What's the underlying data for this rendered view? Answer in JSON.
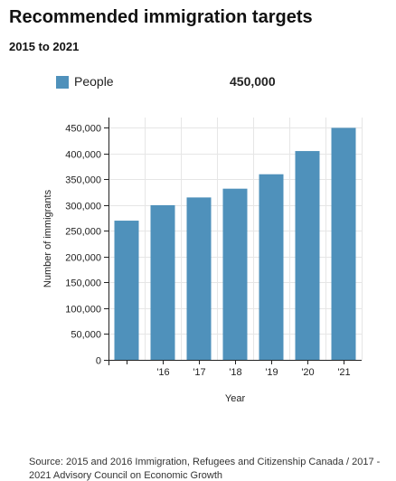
{
  "title": "Recommended immigration targets",
  "subtitle": "2015 to 2021",
  "legend": {
    "label": "People",
    "value": "450,000"
  },
  "source": "Source: 2015 and 2016 Immigration, Refugees and Citizenship Canada / 2017 - 2021 Advisory Council on Economic Growth",
  "colors": {
    "bar": "#4f91bb",
    "grid": "#e6e6e6",
    "axis": "#222222"
  },
  "chart_data": {
    "type": "bar",
    "categories": [
      "",
      "'16",
      "'17",
      "'18",
      "'19",
      "'20",
      "'21"
    ],
    "series": [
      {
        "name": "People",
        "values": [
          270000,
          300000,
          315000,
          332000,
          360000,
          405000,
          450000
        ]
      }
    ],
    "title": "Recommended immigration targets",
    "subtitle": "2015 to 2021",
    "xlabel": "Year",
    "ylabel": "Number of immigrants",
    "ylim": [
      0,
      470000
    ],
    "yticks": [
      0,
      50000,
      100000,
      150000,
      200000,
      250000,
      300000,
      350000,
      400000,
      450000
    ],
    "ytick_labels": [
      "0",
      "50,000",
      "100,000",
      "150,000",
      "200,000",
      "250,000",
      "300,000",
      "350,000",
      "400,000",
      "450,000"
    ],
    "grid": true,
    "legend_position": "top"
  }
}
